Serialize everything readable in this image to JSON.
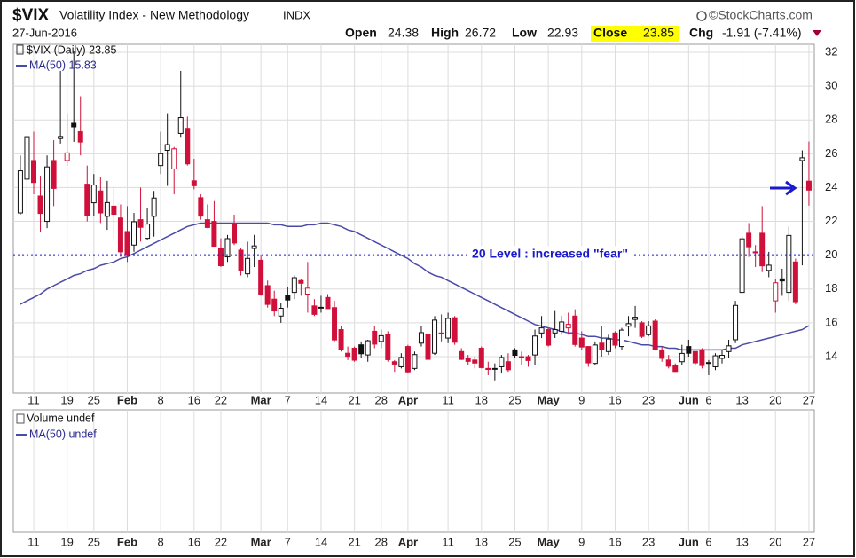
{
  "chart_data": {
    "type": "candlestick",
    "title": "$VIX",
    "subtitle": "Volatility Index - New Methodology",
    "exchange": "INDX",
    "date": "27-Jun-2016",
    "source": "©StockCharts.com",
    "quote": [
      {
        "label": "Open",
        "value": 24.38
      },
      {
        "label": "High",
        "value": 26.72
      },
      {
        "label": "Low",
        "value": 22.93
      },
      {
        "label": "Close",
        "value": 23.85
      },
      {
        "label": "Chg",
        "value": "-1.91 (-7.41%)"
      }
    ],
    "categories": [
      null,
      null,
      "11",
      null,
      null,
      null,
      null,
      "19",
      null,
      null,
      null,
      "25",
      null,
      null,
      null,
      null,
      "Feb",
      null,
      null,
      null,
      null,
      "8",
      null,
      null,
      null,
      null,
      "16",
      null,
      null,
      null,
      "22",
      null,
      null,
      null,
      null,
      null,
      "Mar",
      null,
      null,
      null,
      "7",
      null,
      null,
      null,
      null,
      "14",
      null,
      null,
      null,
      null,
      "21",
      null,
      null,
      null,
      "28",
      null,
      null,
      null,
      "Apr",
      null,
      null,
      null,
      null,
      null,
      "11",
      null,
      null,
      null,
      null,
      "18",
      null,
      null,
      null,
      null,
      "25",
      null,
      null,
      null,
      null,
      "May",
      null,
      null,
      null,
      null,
      "9",
      null,
      null,
      null,
      null,
      "16",
      null,
      null,
      null,
      null,
      "23",
      null,
      null,
      null,
      null,
      null,
      "Jun",
      null,
      null,
      "6",
      null,
      null,
      null,
      null,
      "13",
      null,
      null,
      null,
      null,
      "20",
      null,
      null,
      null,
      null,
      "27"
    ],
    "series": [
      {
        "name": "$VIX (Daily) 23.85",
        "type": "candlestick",
        "up_color": "#111111",
        "down_color": "#d0103a",
        "open": [
          22.5,
          24.5,
          25.6,
          23.5,
          22.0,
          25.6,
          26.9,
          25.6,
          27.8,
          27.3,
          24.2,
          23.1,
          23.8,
          22.3,
          22.9,
          22.2,
          21.4,
          20.6,
          22.1,
          21.0,
          22.3,
          25.3,
          26.2,
          25.1,
          27.2,
          27.5,
          24.4,
          23.4,
          22.1,
          22.0,
          20.4,
          19.9,
          21.8,
          20.3,
          18.9,
          20.4,
          19.7,
          18.2,
          17.4,
          16.4,
          17.6,
          17.8,
          18.5,
          17.7,
          17.0,
          16.9,
          17.5,
          16.9,
          15.6,
          14.2,
          14.5,
          14.7,
          14.1,
          15.5,
          14.9,
          15.3,
          13.7,
          13.4,
          14.6,
          13.3,
          14.8,
          15.3,
          14.2,
          15.4,
          15.1,
          16.3,
          14.3,
          13.9,
          13.8,
          14.5,
          13.3,
          13.3,
          13.4,
          13.7,
          14.4,
          14.0,
          14.0,
          14.1,
          15.4,
          15.6,
          15.4,
          15.5,
          15.7,
          16.4,
          15.1,
          14.6,
          13.6,
          14.8,
          14.3,
          15.4,
          14.6,
          15.8,
          16.2,
          16.0,
          15.3,
          16.1,
          14.4,
          13.8,
          13.5,
          13.7,
          14.6,
          14.3,
          14.4,
          13.6,
          13.4,
          13.9,
          14.3,
          15.0,
          17.8,
          21.3,
          20.2,
          21.3,
          19.1,
          17.3,
          18.6,
          17.8,
          19.6,
          25.6,
          24.38
        ],
        "high": [
          25.9,
          27.1,
          27.3,
          24.7,
          25.9,
          26.8,
          30.9,
          28.4,
          32.1,
          29.4,
          25.3,
          24.8,
          24.6,
          24.4,
          24.0,
          23.0,
          22.9,
          22.5,
          24.0,
          22.8,
          23.8,
          27.3,
          28.4,
          26.4,
          30.9,
          28.2,
          25.7,
          23.6,
          23.0,
          23.2,
          21.0,
          21.2,
          22.4,
          20.4,
          20.8,
          21.2,
          20.0,
          18.5,
          17.9,
          17.2,
          18.1,
          18.8,
          18.6,
          19.6,
          17.4,
          17.6,
          17.7,
          17.3,
          15.8,
          14.6,
          14.6,
          14.9,
          15.0,
          15.8,
          15.6,
          15.5,
          13.8,
          14.2,
          14.7,
          14.3,
          15.8,
          15.5,
          16.4,
          16.5,
          16.6,
          16.4,
          14.5,
          14.1,
          14.0,
          14.6,
          13.7,
          13.6,
          14.1,
          14.2,
          14.5,
          14.3,
          14.1,
          15.6,
          16.4,
          15.7,
          16.7,
          16.4,
          16.6,
          16.8,
          15.5,
          14.6,
          14.9,
          15.8,
          15.3,
          15.5,
          15.7,
          16.4,
          17.0,
          16.1,
          16.1,
          16.2,
          14.6,
          14.1,
          13.6,
          14.7,
          15.0,
          14.3,
          14.5,
          13.8,
          14.2,
          14.4,
          15.0,
          17.3,
          21.1,
          21.9,
          20.6,
          22.9,
          20.2,
          18.6,
          19.2,
          21.7,
          19.8,
          26.2,
          26.72
        ],
        "low": [
          22.4,
          22.3,
          23.6,
          21.4,
          21.6,
          22.9,
          26.6,
          25.3,
          26.7,
          25.9,
          22.0,
          22.3,
          21.9,
          21.5,
          21.0,
          19.9,
          19.6,
          20.2,
          20.8,
          20.9,
          21.1,
          24.8,
          24.1,
          23.6,
          27.0,
          25.3,
          23.9,
          22.1,
          21.6,
          20.6,
          19.3,
          19.6,
          20.6,
          18.8,
          18.7,
          19.3,
          17.6,
          16.9,
          16.4,
          16.0,
          16.9,
          17.4,
          17.6,
          16.6,
          16.4,
          16.6,
          16.9,
          14.9,
          14.3,
          13.8,
          13.7,
          13.9,
          13.7,
          14.5,
          14.5,
          13.7,
          13.1,
          13.3,
          13.0,
          13.2,
          14.6,
          13.7,
          14.1,
          14.9,
          14.8,
          14.7,
          13.8,
          13.5,
          13.3,
          13.3,
          12.9,
          12.6,
          13.0,
          13.1,
          13.9,
          13.5,
          13.4,
          13.5,
          15.1,
          14.6,
          15.1,
          15.3,
          15.3,
          14.6,
          14.4,
          13.4,
          13.5,
          14.0,
          14.1,
          14.5,
          14.4,
          15.2,
          15.7,
          15.1,
          15.2,
          14.4,
          13.7,
          13.3,
          13.1,
          13.5,
          14.0,
          13.5,
          13.3,
          12.9,
          13.2,
          13.6,
          13.9,
          14.8,
          17.8,
          19.9,
          19.3,
          19.0,
          18.7,
          16.6,
          17.6,
          17.3,
          17.1,
          19.4,
          22.93
        ],
        "close": [
          24.99,
          27.01,
          24.3,
          22.47,
          25.22,
          23.95,
          27.02,
          26.05,
          27.59,
          26.69,
          22.34,
          24.15,
          22.5,
          23.11,
          22.42,
          20.2,
          19.98,
          21.98,
          21.65,
          21.84,
          23.38,
          26.0,
          26.54,
          26.29,
          28.14,
          25.4,
          24.11,
          22.31,
          21.64,
          20.53,
          19.38,
          20.98,
          20.72,
          19.11,
          19.81,
          20.55,
          17.7,
          17.09,
          16.7,
          16.86,
          17.35,
          18.67,
          18.34,
          18.05,
          16.5,
          16.92,
          16.84,
          14.99,
          14.44,
          14.02,
          13.79,
          14.17,
          14.94,
          14.74,
          15.24,
          13.82,
          13.56,
          13.95,
          13.1,
          14.12,
          15.42,
          13.84,
          16.16,
          15.36,
          16.26,
          14.85,
          13.84,
          13.72,
          13.62,
          13.35,
          13.24,
          13.28,
          13.95,
          13.22,
          14.08,
          13.96,
          13.77,
          15.22,
          15.7,
          14.68,
          15.6,
          16.05,
          15.91,
          14.72,
          14.57,
          13.63,
          14.69,
          14.41,
          15.04,
          14.68,
          15.57,
          15.95,
          16.33,
          15.2,
          15.82,
          14.42,
          13.9,
          13.43,
          13.12,
          14.19,
          14.2,
          13.63,
          13.47,
          13.65,
          14.05,
          14.08,
          14.64,
          17.03,
          20.97,
          20.5,
          20.14,
          19.37,
          19.41,
          18.37,
          18.48,
          21.17,
          17.25,
          25.76,
          23.85
        ]
      },
      {
        "name": "MA(50) 15.83",
        "type": "line",
        "color": "#4a4aa8",
        "values": [
          17.1,
          17.3,
          17.5,
          17.7,
          18.0,
          18.2,
          18.4,
          18.6,
          18.8,
          18.9,
          19.1,
          19.2,
          19.4,
          19.5,
          19.6,
          19.8,
          19.9,
          20.1,
          20.3,
          20.5,
          20.7,
          20.9,
          21.1,
          21.3,
          21.5,
          21.7,
          21.8,
          21.9,
          21.9,
          21.9,
          21.9,
          21.9,
          21.9,
          21.9,
          21.9,
          21.9,
          21.9,
          21.9,
          21.8,
          21.8,
          21.7,
          21.7,
          21.7,
          21.8,
          21.8,
          21.9,
          21.9,
          21.8,
          21.7,
          21.5,
          21.4,
          21.2,
          21.0,
          20.8,
          20.6,
          20.4,
          20.2,
          20.0,
          19.8,
          19.5,
          19.3,
          19.0,
          18.8,
          18.7,
          18.5,
          18.3,
          18.1,
          17.9,
          17.7,
          17.5,
          17.3,
          17.1,
          16.9,
          16.7,
          16.5,
          16.3,
          16.1,
          15.9,
          15.8,
          15.7,
          15.6,
          15.5,
          15.4,
          15.4,
          15.3,
          15.2,
          15.2,
          15.1,
          15.1,
          15.0,
          15.0,
          14.9,
          14.8,
          14.7,
          14.7,
          14.6,
          14.6,
          14.5,
          14.5,
          14.4,
          14.4,
          14.4,
          14.4,
          14.4,
          14.4,
          14.4,
          14.5,
          14.5,
          14.7,
          14.8,
          14.9,
          15.0,
          15.1,
          15.2,
          15.3,
          15.4,
          15.5,
          15.6,
          15.83
        ]
      }
    ],
    "ylim": [
      11.85,
      32.47
    ],
    "yticks": [
      14,
      16,
      18,
      20,
      22,
      24,
      26,
      28,
      30,
      32
    ],
    "grid": true,
    "annotations": [
      {
        "text": "20 Level : increased \"fear\"",
        "value": 20,
        "color": "#1a1acc"
      }
    ],
    "volume_legend": [
      "Volume undef",
      "MA(50) undef"
    ]
  }
}
